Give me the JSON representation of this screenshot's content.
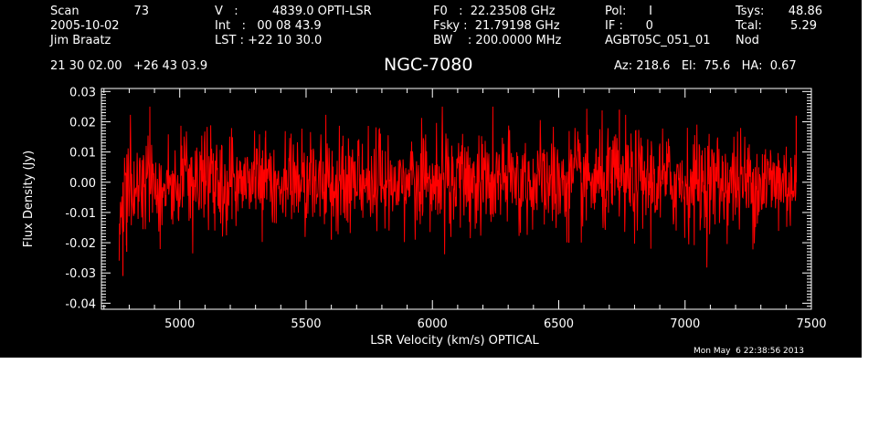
{
  "header": {
    "row1": {
      "scan_label": "Scan",
      "scan_value": "73",
      "v_label": "V   :",
      "v_value": "4839.0 OPTI-LSR",
      "f0": "F0   :  22.23508 GHz",
      "pol": "Pol:      I",
      "tsys_label": "Tsys:",
      "tsys_value": "48.86"
    },
    "row2": {
      "date": "2005-10-02",
      "int": "Int   :   00 08 43.9",
      "fsky": "Fsky :  21.79198 GHz",
      "if": "IF :      0",
      "tcal_label": "Tcal:",
      "tcal_value": "5.29"
    },
    "row3": {
      "observer": "Jim Braatz",
      "lst": "LST : +22 10 30.0",
      "bw": "BW    : 200.0000 MHz",
      "project": "AGBT05C_051_01",
      "proc": "Nod"
    },
    "coords": "21 30 02.00   +26 43 03.9",
    "az_el_ha": "Az: 218.6   El:  75.6   HA:  0.67"
  },
  "title": "NGC-7080",
  "timestamp": "Mon May  6 22:38:56 2013",
  "chart_data": {
    "type": "line",
    "title": "NGC-7080",
    "xlabel": "LSR Velocity (km/s) OPTICAL",
    "ylabel": "Flux Density (Jy)",
    "xlim": [
      4690,
      7500
    ],
    "ylim": [
      -0.042,
      0.031
    ],
    "xticks": [
      5000,
      5500,
      6000,
      6500,
      7000,
      7500
    ],
    "xtick_labels": [
      "5000",
      "5500",
      "6000",
      "6500",
      "7000",
      "7500"
    ],
    "yticks": [
      -0.04,
      -0.03,
      -0.02,
      -0.01,
      0.0,
      0.01,
      0.02,
      0.03
    ],
    "ytick_labels": [
      "-0.04",
      "-0.03",
      "-0.02",
      "-0.01",
      "0.00",
      "0.01",
      "0.02",
      "0.03"
    ],
    "grid": false,
    "colors": {
      "series": "#ff0000",
      "axes": "#ffffff",
      "background": "#000000"
    },
    "series": [
      {
        "x_start": 4760,
        "x_end": 7440,
        "noise_sigma": 0.0085,
        "features": [
          {
            "x": 4775,
            "y": -0.031
          },
          {
            "x": 4790,
            "y": -0.023
          },
          {
            "x": 5340,
            "y": 0.017
          },
          {
            "x": 5600,
            "y": -0.019
          },
          {
            "x": 6540,
            "y": -0.02
          },
          {
            "x": 6740,
            "y": 0.024
          },
          {
            "x": 7440,
            "y": 0.022
          }
        ]
      }
    ]
  }
}
